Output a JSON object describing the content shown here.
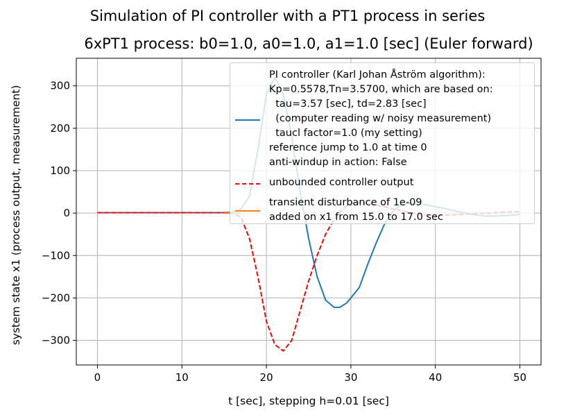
{
  "figure": {
    "suptitle": "Simulation of PI controller with a PT1 process in series",
    "title": "6xPT1 process: b0=1.0, a0=1.0, a1=1.0 [sec] (Euler forward)"
  },
  "legend": {
    "entries": [
      {
        "lines": [
          "PI controller (Karl Johan Åström algorithm):",
          "Kp=0.5578,Tn=3.5700, which are based on:",
          "  tau=3.57 [sec], td=2.83 [sec]",
          "  (computer reading w/ noisy measurement)",
          "  taucl factor=1.0 (my setting)",
          "reference jump to 1.0 at time 0",
          "anti-windup in action: False"
        ],
        "color": "#1f77b4",
        "style": "solid"
      },
      {
        "lines": [
          "unbounded controller output"
        ],
        "color": "#ff0000",
        "style": "dashed"
      },
      {
        "lines": [
          "transient disturbance of 1e-09",
          "added on x1 from 15.0 to 17.0 sec"
        ],
        "color": "#ff7f0e",
        "style": "solid"
      }
    ]
  },
  "chart_data": {
    "type": "line",
    "xlabel": "t [sec], stepping h=0.01 [sec]",
    "ylabel": "system state x1 (process output, measurement)",
    "xlim": [
      -2.5,
      52.5
    ],
    "ylim": [
      -358,
      365
    ],
    "xticks": [
      0,
      10,
      20,
      30,
      40,
      50
    ],
    "yticks": [
      -300,
      -200,
      -100,
      0,
      100,
      200,
      300
    ],
    "grid": true,
    "legend_position": "upper right",
    "series": [
      {
        "name": "PI controller (Karl Johan Åström algorithm)",
        "color": "#1f77b4",
        "style": "solid",
        "x": [
          0,
          10,
          15,
          16,
          17,
          18,
          19,
          20,
          21,
          22,
          23,
          24,
          25,
          26,
          27,
          28,
          28.7,
          29.5,
          30,
          31,
          32,
          33,
          34,
          35,
          36,
          37,
          38,
          39,
          40,
          41,
          42,
          43,
          44,
          45,
          46,
          47,
          48,
          49,
          50
        ],
        "y": [
          1,
          1,
          1,
          2,
          10,
          40,
          150,
          280,
          320,
          280,
          180,
          50,
          -60,
          -150,
          -205,
          -222,
          -222,
          -212,
          -200,
          -175,
          -120,
          -70,
          -25,
          5,
          20,
          23,
          22,
          19,
          15,
          11,
          7,
          2,
          -2,
          -5,
          -7,
          -7,
          -6,
          -5,
          -3
        ]
      },
      {
        "name": "unbounded controller output",
        "color": "#ff0000",
        "style": "dashed",
        "x": [
          0,
          10,
          15,
          16,
          17,
          18,
          19,
          20,
          21,
          22,
          23,
          24,
          25,
          26,
          27,
          28,
          29,
          30,
          31,
          32,
          33,
          34,
          35,
          36,
          37,
          38,
          39,
          40,
          41,
          42,
          43,
          44,
          45,
          46,
          47,
          48,
          49,
          50
        ],
        "y": [
          1,
          1,
          1,
          0,
          -10,
          -60,
          -150,
          -255,
          -310,
          -325,
          -300,
          -230,
          -160,
          -100,
          -50,
          -15,
          10,
          22,
          25,
          23,
          19,
          15,
          10,
          5,
          1,
          -2,
          -4,
          -5,
          -5,
          -4,
          -3,
          -2,
          -1,
          0,
          1,
          2,
          3,
          3
        ]
      },
      {
        "name": "transient disturbance of 1e-09",
        "color": "#ff7f0e",
        "style": "solid",
        "x": [
          15,
          17
        ],
        "y": [
          0,
          0
        ]
      }
    ]
  }
}
